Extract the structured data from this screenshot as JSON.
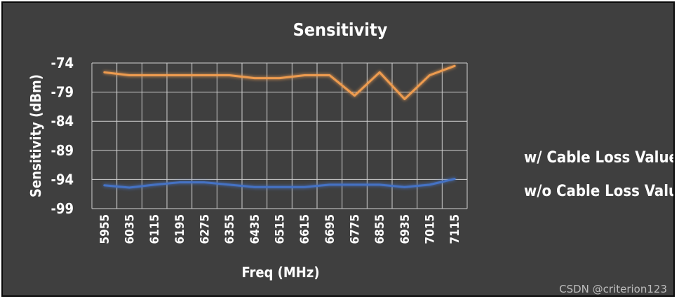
{
  "chart_data": {
    "type": "line",
    "title": "Sensitivity",
    "xlabel": "Freq (MHz)",
    "ylabel": "Sensitivity (dBm)",
    "ylim": [
      -99,
      -74
    ],
    "yticks": [
      -74,
      -79,
      -84,
      -89,
      -94,
      -99
    ],
    "grid": true,
    "legend_position": "right",
    "categories": [
      "5955",
      "6035",
      "6115",
      "6195",
      "6275",
      "6355",
      "6435",
      "6515",
      "6615",
      "6695",
      "6775",
      "6855",
      "6935",
      "7015",
      "7115"
    ],
    "series": [
      {
        "name": "w/ Cable Loss Value",
        "color": "#4472c4",
        "values": [
          -95.0,
          -95.4,
          -94.9,
          -94.5,
          -94.5,
          -94.9,
          -95.3,
          -95.3,
          -95.3,
          -94.9,
          -94.9,
          -94.9,
          -95.3,
          -94.9,
          -93.9
        ]
      },
      {
        "name": "w/o Cable Loss Value",
        "color": "#ed9b4f",
        "values": [
          -75.6,
          -76.1,
          -76.1,
          -76.1,
          -76.1,
          -76.1,
          -76.6,
          -76.6,
          -76.1,
          -76.1,
          -79.6,
          -75.6,
          -80.2,
          -76.1,
          -74.5
        ]
      }
    ]
  },
  "watermark": "CSDN @criterion123"
}
